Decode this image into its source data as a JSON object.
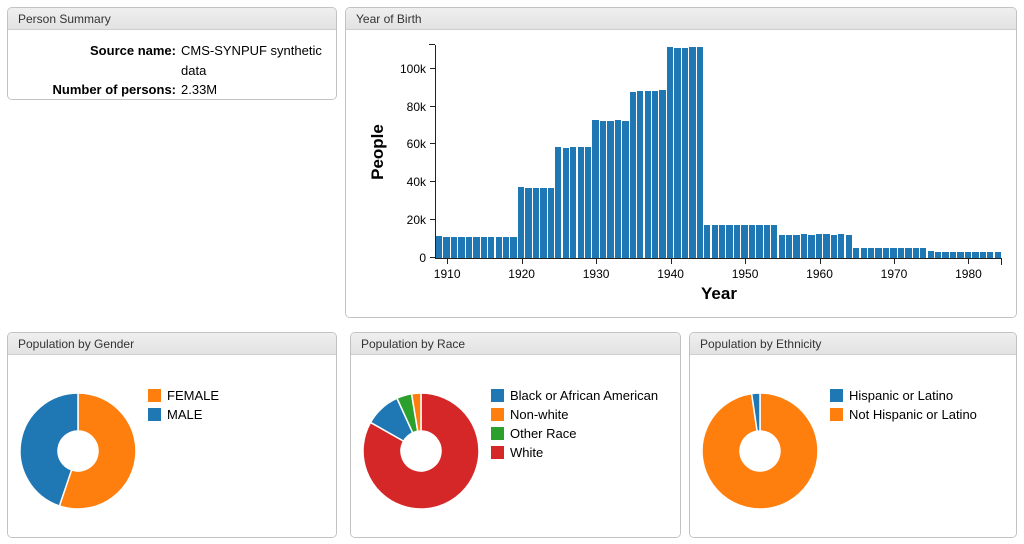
{
  "panels": {
    "summary": {
      "title": "Person Summary",
      "rows": [
        {
          "label": "Source name:",
          "value": "CMS-SYNPUF synthetic data"
        },
        {
          "label": "Number of persons:",
          "value": "2.33M"
        }
      ]
    }
  },
  "colors": {
    "blue": "#1f77b4",
    "orange": "#ff7f0e",
    "green": "#2ca02c",
    "red": "#d62728"
  },
  "chart_data": [
    {
      "id": "year_of_birth",
      "type": "bar",
      "title": "Year of Birth",
      "xlabel": "Year",
      "ylabel": "People",
      "bar_color": "#1f77b4",
      "ylim": [
        0,
        112500
      ],
      "y_tick_values": [
        0,
        20000,
        40000,
        60000,
        80000,
        100000
      ],
      "y_tick_labels": [
        "0",
        "20k",
        "40k",
        "60k",
        "80k",
        "100k"
      ],
      "x_ticks": [
        1910,
        1920,
        1930,
        1940,
        1950,
        1960,
        1970,
        1980
      ],
      "years": [
        1909,
        1910,
        1911,
        1912,
        1913,
        1914,
        1915,
        1916,
        1917,
        1918,
        1919,
        1920,
        1921,
        1922,
        1923,
        1924,
        1925,
        1926,
        1927,
        1928,
        1929,
        1930,
        1931,
        1932,
        1933,
        1934,
        1935,
        1936,
        1937,
        1938,
        1939,
        1940,
        1941,
        1942,
        1943,
        1944,
        1945,
        1946,
        1947,
        1948,
        1949,
        1950,
        1951,
        1952,
        1953,
        1954,
        1955,
        1956,
        1957,
        1958,
        1959,
        1960,
        1961,
        1962,
        1963,
        1964,
        1965,
        1966,
        1967,
        1968,
        1969,
        1970,
        1971,
        1972,
        1973,
        1974,
        1975,
        1976,
        1977,
        1978,
        1979,
        1980,
        1981,
        1982,
        1983,
        1984
      ],
      "values": [
        11500,
        11200,
        11000,
        11100,
        11000,
        11300,
        11200,
        11000,
        11100,
        10900,
        11000,
        37500,
        37000,
        36800,
        37000,
        37200,
        58500,
        58300,
        58400,
        58600,
        58500,
        73000,
        72500,
        72600,
        73000,
        72400,
        87600,
        88000,
        88000,
        88200,
        88500,
        111500,
        111000,
        111000,
        111600,
        111200,
        17600,
        17400,
        17500,
        17500,
        17600,
        17500,
        17400,
        17500,
        17600,
        17500,
        12400,
        12300,
        12400,
        12500,
        12300,
        12500,
        12600,
        12400,
        12500,
        12400,
        5400,
        5300,
        5200,
        5400,
        5300,
        5500,
        5300,
        5400,
        5200,
        5300,
        3500,
        3400,
        3300,
        3400,
        3300,
        3200,
        3300,
        3200,
        3100,
        3200
      ]
    },
    {
      "id": "gender",
      "type": "pie",
      "title": "Population by Gender",
      "legend_position": "right",
      "slices": [
        {
          "label": "FEMALE",
          "color": "#ff7f0e",
          "pct": 55.2
        },
        {
          "label": "MALE",
          "color": "#1f77b4",
          "pct": 44.8
        }
      ]
    },
    {
      "id": "race",
      "type": "pie",
      "title": "Population by Race",
      "legend_position": "right",
      "slices": [
        {
          "label": "Black or African American",
          "color": "#1f77b4",
          "pct": 10.0
        },
        {
          "label": "Non-white",
          "color": "#ff7f0e",
          "pct": 2.6
        },
        {
          "label": "Other Race",
          "color": "#2ca02c",
          "pct": 4.2
        },
        {
          "label": "White",
          "color": "#d62728",
          "pct": 83.2
        }
      ]
    },
    {
      "id": "ethnicity",
      "type": "pie",
      "title": "Population by Ethnicity",
      "legend_position": "right",
      "slices": [
        {
          "label": "Hispanic or Latino",
          "color": "#1f77b4",
          "pct": 2.3
        },
        {
          "label": "Not Hispanic or Latino",
          "color": "#ff7f0e",
          "pct": 97.7
        }
      ]
    }
  ]
}
